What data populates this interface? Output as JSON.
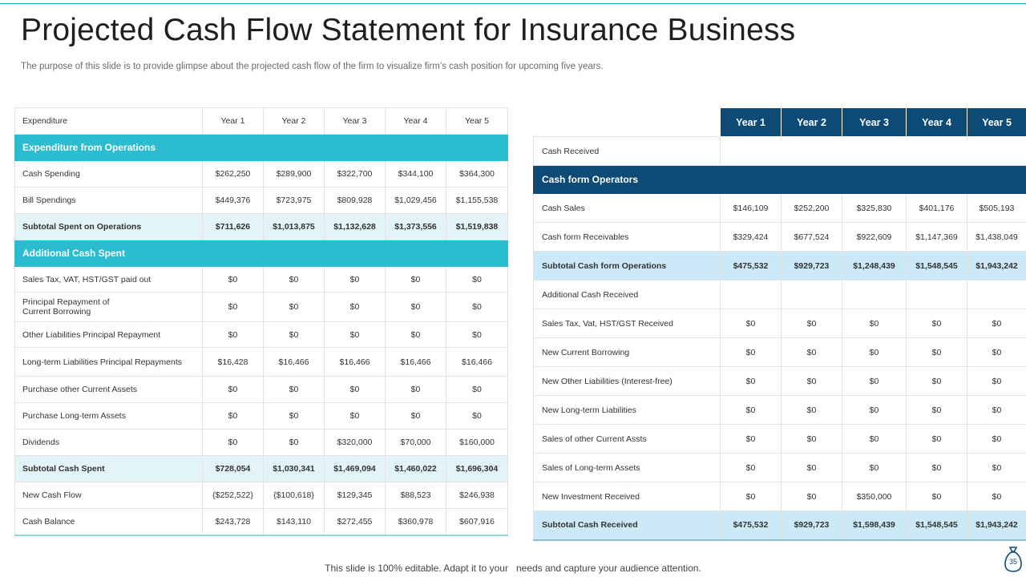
{
  "title": "Projected Cash Flow Statement  for Insurance Business",
  "subtitle": "The purpose of this slide is to provide glimpse about the projected cash flow of the firm to visualize firm’s cash position for upcoming five years.",
  "left_table": {
    "header_label": "Expenditure",
    "years": [
      "Year 1",
      "Year 2",
      "Year 3",
      "Year 4",
      "Year 5"
    ],
    "sections": {
      "operations": "Expenditure  from Operations",
      "additional": "Additional  Cash Spent"
    },
    "rows": {
      "cash_spending": {
        "label": "Cash Spending",
        "values": [
          "$262,250",
          "$289,900",
          "$322,700",
          "$344,100",
          "$364,300"
        ]
      },
      "bill_spendings": {
        "label": "Bill Spendings",
        "values": [
          "$449,376",
          "$723,975",
          "$809,928",
          "$1,029,456",
          "$1,155,538"
        ]
      },
      "subtotal_ops": {
        "label": "Subtotal Spent on Operations",
        "values": [
          "$711,626",
          "$1,013,875",
          "$1,132,628",
          "$1,373,556",
          "$1,519,838"
        ]
      },
      "sales_tax": {
        "label": "Sales Tax, VAT, HST/GST  paid out",
        "values": [
          "$0",
          "$0",
          "$0",
          "$0",
          "$0"
        ]
      },
      "principal_repayment": {
        "label_line1": "Principal Repayment of",
        "label_line2": "Current Borrowing",
        "values": [
          "$0",
          "$0",
          "$0",
          "$0",
          "$0"
        ]
      },
      "other_liabilities": {
        "label": "Other Liabilities  Principal Repayment",
        "values": [
          "$0",
          "$0",
          "$0",
          "$0",
          "$0"
        ]
      },
      "long_term_liabilities": {
        "label": "Long-term Liabilities  Principal Repayments",
        "values": [
          "$16,428",
          "$16,466",
          "$16,466",
          "$16,466",
          "$16,466"
        ]
      },
      "purchase_current": {
        "label": "Purchase other Current Assets",
        "values": [
          "$0",
          "$0",
          "$0",
          "$0",
          "$0"
        ]
      },
      "purchase_long_term": {
        "label": "Purchase Long-term Assets",
        "values": [
          "$0",
          "$0",
          "$0",
          "$0",
          "$0"
        ]
      },
      "dividends": {
        "label": "Dividends",
        "values": [
          "$0",
          "$0",
          "$320,000",
          "$70,000",
          "$160,000"
        ]
      },
      "subtotal_spent": {
        "label": "Subtotal Cash Spent",
        "values": [
          "$728,054",
          "$1,030,341",
          "$1,469,094",
          "$1,460,022",
          "$1,696,304"
        ]
      },
      "new_cash_flow": {
        "label": "New Cash Flow",
        "values": [
          "{$252,522}",
          "{$100,618}",
          "$129,345",
          "$88,523",
          "$246,938"
        ]
      },
      "cash_balance": {
        "label": "Cash Balance",
        "values": [
          "$243,728",
          "$143,110",
          "$272,455",
          "$360,978",
          "$607,916"
        ]
      }
    }
  },
  "right_table": {
    "years": [
      "Year 1",
      "Year 2",
      "Year 3",
      "Year 4",
      "Year 5"
    ],
    "cash_received_label": "Cash Received",
    "section_operators": "Cash form Operators",
    "additional_label": "Additional Cash Received",
    "rows": {
      "cash_sales": {
        "label": "Cash Sales",
        "values": [
          "$146,109",
          "$252,200",
          "$325,830",
          "$401,176",
          "$505,193"
        ]
      },
      "cash_receivables": {
        "label": "Cash form Receivables",
        "values": [
          "$329,424",
          "$677,524",
          "$922,609",
          "$1,147,369",
          "$1,438,049"
        ]
      },
      "subtotal_ops": {
        "label": "Subtotal Cash form Operations",
        "values": [
          "$475,532",
          "$929,723",
          "$1,248,439",
          "$1,548,545",
          "$1,943,242"
        ]
      },
      "sales_tax": {
        "label": "Sales Tax, Vat, HST/GST  Received",
        "values": [
          "$0",
          "$0",
          "$0",
          "$0",
          "$0"
        ]
      },
      "new_current_borrowing": {
        "label": "New Current Borrowing",
        "values": [
          "$0",
          "$0",
          "$0",
          "$0",
          "$0"
        ]
      },
      "new_other_liabilities": {
        "label": "New Other Liabilities  (Interest-free)",
        "values": [
          "$0",
          "$0",
          "$0",
          "$0",
          "$0"
        ]
      },
      "new_long_term": {
        "label": "New Long-term Liabilities",
        "values": [
          "$0",
          "$0",
          "$0",
          "$0",
          "$0"
        ]
      },
      "sales_current": {
        "label": "Sales of other Current Assts",
        "values": [
          "$0",
          "$0",
          "$0",
          "$0",
          "$0"
        ]
      },
      "sales_long_term": {
        "label": "Sales of Long-term Assets",
        "values": [
          "$0",
          "$0",
          "$0",
          "$0",
          "$0"
        ]
      },
      "new_investment": {
        "label": "New Investment Received",
        "values": [
          "$0",
          "$0",
          "$350,000",
          "$0",
          "$0"
        ]
      },
      "subtotal_received": {
        "label": "Subtotal Cash Received",
        "values": [
          "$475,532",
          "$929,723",
          "$1,598,439",
          "$1,548,545",
          "$1,943,242"
        ]
      }
    }
  },
  "footer": "This slide is 100% editable. Adapt it to your   needs and capture your audience attention.",
  "page_number": "35",
  "colors": {
    "teal": "#2cbccf",
    "navy": "#0d4a75",
    "light_teal": "#e3f4f8",
    "light_blue": "#cbe9f7"
  },
  "icons": {
    "page_badge": "money-bag-icon"
  }
}
